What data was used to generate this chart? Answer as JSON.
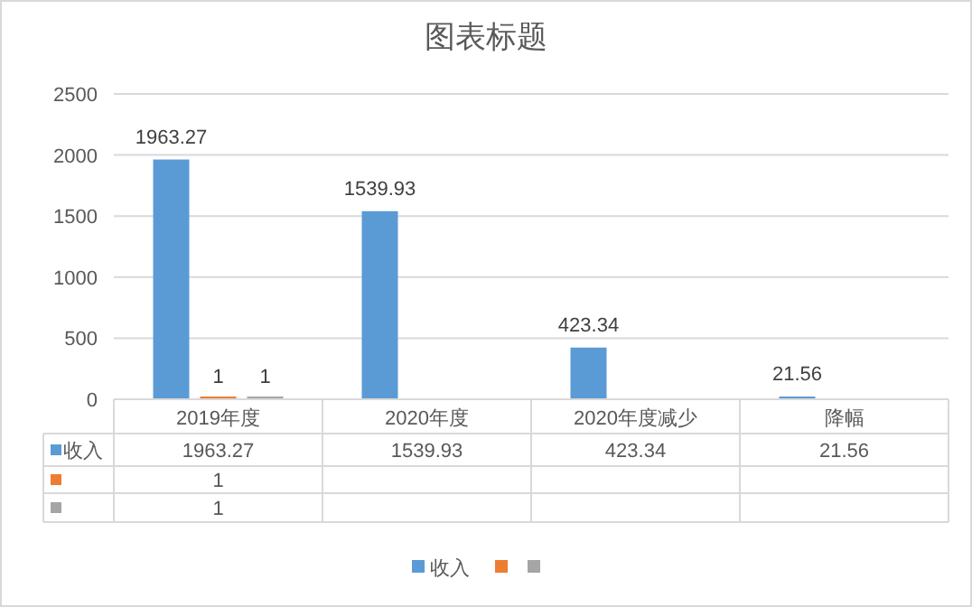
{
  "chart_data": {
    "type": "bar",
    "title": "图表标题",
    "categories": [
      "2019年度",
      "2020年度",
      "2020年度减少",
      "降幅"
    ],
    "series": [
      {
        "name": "收入",
        "color": "#5b9bd5",
        "values": [
          1963.27,
          1539.93,
          423.34,
          21.56
        ],
        "value_labels": [
          "1963.27",
          "1539.93",
          "423.34",
          "21.56"
        ]
      },
      {
        "color": "#ed7d31",
        "values": [
          1,
          null,
          null,
          null
        ],
        "value_labels": [
          "1",
          null,
          null,
          null
        ]
      },
      {
        "color": "#a5a5a5",
        "values": [
          1,
          null,
          null,
          null
        ],
        "value_labels": [
          "1",
          null,
          null,
          null
        ]
      }
    ],
    "ylim": [
      0,
      2500
    ],
    "yticks": [
      0,
      500,
      1000,
      1500,
      2000,
      2500
    ],
    "grid": "y",
    "annotations": [
      "1963.27",
      "1539.93",
      "423.34",
      "21.56",
      "1",
      "1"
    ],
    "legend": "bottom"
  }
}
